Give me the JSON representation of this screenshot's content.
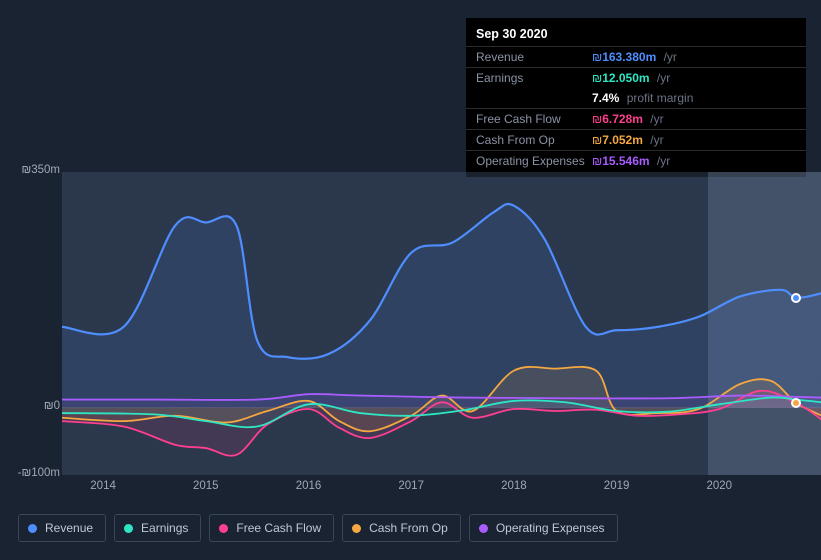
{
  "tooltip": {
    "date": "Sep 30 2020",
    "rows": [
      {
        "label": "Revenue",
        "currency": "₪",
        "value": "163.380m",
        "suffix": "/yr",
        "color": "#4f8eff"
      },
      {
        "label": "Earnings",
        "currency": "₪",
        "value": "12.050m",
        "suffix": "/yr",
        "color": "#2ee6c4"
      },
      {
        "label": "",
        "currency": "",
        "value": "7.4%",
        "suffix": "profit margin",
        "color": "#ffffff",
        "noborder": true
      },
      {
        "label": "Free Cash Flow",
        "currency": "₪",
        "value": "6.728m",
        "suffix": "/yr",
        "color": "#ff3f8f"
      },
      {
        "label": "Cash From Op",
        "currency": "₪",
        "value": "7.052m",
        "suffix": "/yr",
        "color": "#f5a742"
      },
      {
        "label": "Operating Expenses",
        "currency": "₪",
        "value": "15.546m",
        "suffix": "/yr",
        "color": "#a95cff"
      }
    ]
  },
  "chart": {
    "type": "line-area",
    "background_color": "#1a2332",
    "plot_background": "rgba(70,90,120,0.38)",
    "highlight_band_from_pct": 85,
    "ylim": [
      -100,
      350
    ],
    "y_ticks": [
      {
        "v": 350,
        "label": "₪350m"
      },
      {
        "v": 0,
        "label": "₪0"
      },
      {
        "v": -100,
        "label": "-₪100m"
      }
    ],
    "x_years": [
      2014,
      2015,
      2016,
      2017,
      2018,
      2019,
      2020
    ],
    "x_domain": [
      2013.6,
      2021.0
    ],
    "series": [
      {
        "name": "Revenue",
        "color": "#4f8eff",
        "fill": "rgba(79,142,255,0.12)",
        "width": 2.2,
        "points": [
          [
            2013.6,
            120
          ],
          [
            2014.2,
            120
          ],
          [
            2014.7,
            270
          ],
          [
            2015.0,
            275
          ],
          [
            2015.3,
            270
          ],
          [
            2015.5,
            100
          ],
          [
            2015.8,
            75
          ],
          [
            2016.2,
            80
          ],
          [
            2016.6,
            130
          ],
          [
            2017.0,
            230
          ],
          [
            2017.4,
            245
          ],
          [
            2017.8,
            290
          ],
          [
            2018.0,
            300
          ],
          [
            2018.3,
            250
          ],
          [
            2018.7,
            120
          ],
          [
            2019.0,
            115
          ],
          [
            2019.4,
            120
          ],
          [
            2019.8,
            135
          ],
          [
            2020.2,
            165
          ],
          [
            2020.6,
            175
          ],
          [
            2020.75,
            163
          ],
          [
            2021.0,
            170
          ]
        ]
      },
      {
        "name": "Cash From Op",
        "color": "#f5a742",
        "fill": "rgba(245,167,66,0.12)",
        "width": 1.8,
        "points": [
          [
            2013.6,
            -15
          ],
          [
            2014.2,
            -20
          ],
          [
            2014.7,
            -12
          ],
          [
            2015.2,
            -22
          ],
          [
            2015.6,
            -5
          ],
          [
            2016.0,
            10
          ],
          [
            2016.3,
            -20
          ],
          [
            2016.6,
            -35
          ],
          [
            2017.0,
            -12
          ],
          [
            2017.3,
            18
          ],
          [
            2017.6,
            -5
          ],
          [
            2018.0,
            55
          ],
          [
            2018.4,
            58
          ],
          [
            2018.8,
            55
          ],
          [
            2019.0,
            -5
          ],
          [
            2019.4,
            -8
          ],
          [
            2019.8,
            -2
          ],
          [
            2020.2,
            35
          ],
          [
            2020.5,
            40
          ],
          [
            2020.75,
            7
          ],
          [
            2021.0,
            -12
          ]
        ]
      },
      {
        "name": "Free Cash Flow",
        "color": "#ff3f8f",
        "fill": "rgba(255,63,143,0.12)",
        "width": 1.8,
        "points": [
          [
            2013.6,
            -20
          ],
          [
            2014.2,
            -28
          ],
          [
            2014.7,
            -55
          ],
          [
            2015.0,
            -60
          ],
          [
            2015.3,
            -70
          ],
          [
            2015.6,
            -25
          ],
          [
            2016.0,
            -2
          ],
          [
            2016.3,
            -30
          ],
          [
            2016.6,
            -45
          ],
          [
            2017.0,
            -20
          ],
          [
            2017.3,
            8
          ],
          [
            2017.6,
            -15
          ],
          [
            2018.0,
            -2
          ],
          [
            2018.4,
            -5
          ],
          [
            2018.8,
            -3
          ],
          [
            2019.2,
            -12
          ],
          [
            2019.6,
            -10
          ],
          [
            2020.0,
            -2
          ],
          [
            2020.4,
            25
          ],
          [
            2020.75,
            7
          ],
          [
            2021.0,
            -18
          ]
        ]
      },
      {
        "name": "Operating Expenses",
        "color": "#a95cff",
        "fill": "rgba(169,92,255,0.10)",
        "width": 1.8,
        "points": [
          [
            2013.6,
            12
          ],
          [
            2014.5,
            12
          ],
          [
            2015.5,
            12
          ],
          [
            2016.0,
            20
          ],
          [
            2016.5,
            18
          ],
          [
            2017.5,
            15
          ],
          [
            2018.5,
            14
          ],
          [
            2019.5,
            14
          ],
          [
            2020.2,
            18
          ],
          [
            2020.75,
            16
          ],
          [
            2021.0,
            15
          ]
        ]
      },
      {
        "name": "Earnings",
        "color": "#2ee6c4",
        "fill": "rgba(46,230,196,0.08)",
        "width": 1.8,
        "points": [
          [
            2013.6,
            -8
          ],
          [
            2014.5,
            -10
          ],
          [
            2015.0,
            -20
          ],
          [
            2015.5,
            -28
          ],
          [
            2016.0,
            5
          ],
          [
            2016.5,
            -8
          ],
          [
            2017.0,
            -12
          ],
          [
            2017.5,
            -4
          ],
          [
            2018.0,
            10
          ],
          [
            2018.5,
            8
          ],
          [
            2019.0,
            -5
          ],
          [
            2019.5,
            -6
          ],
          [
            2020.0,
            5
          ],
          [
            2020.5,
            15
          ],
          [
            2020.75,
            12
          ],
          [
            2021.0,
            8
          ]
        ]
      }
    ],
    "hover_x": 2020.75,
    "hover_markers": [
      {
        "series": "Revenue",
        "color": "#4f8eff",
        "y": 163
      },
      {
        "series": "Cash From Op",
        "color": "#f5a742",
        "y": 7
      }
    ]
  },
  "legend": [
    {
      "label": "Revenue",
      "color": "#4f8eff"
    },
    {
      "label": "Earnings",
      "color": "#2ee6c4"
    },
    {
      "label": "Free Cash Flow",
      "color": "#ff3f8f"
    },
    {
      "label": "Cash From Op",
      "color": "#f5a742"
    },
    {
      "label": "Operating Expenses",
      "color": "#a95cff"
    }
  ]
}
